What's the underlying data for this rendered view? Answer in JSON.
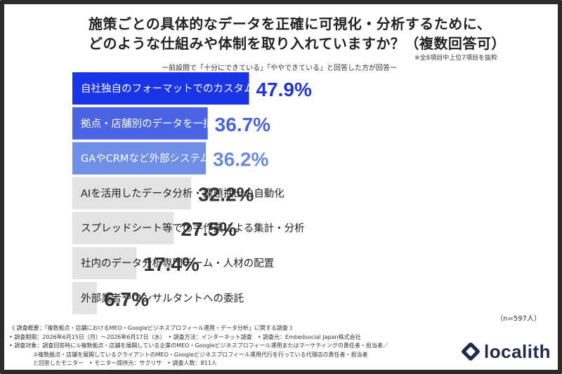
{
  "title": {
    "line1": "施策ごとの具体的なデータを正確に可視化・分析するために、",
    "line2": "どのような仕組みや体制を取り入れていますか？（複数回答可）"
  },
  "note": "※全8項目中上位7項目を抜粋",
  "subtitle": "ー前設問で「十分にできている」「ややできている」と回答した方が回答ー",
  "sample_size": "（n=597人）",
  "chart_data": {
    "type": "bar",
    "orientation": "horizontal",
    "categories": [
      "自社独自のフォーマットでのカスタムレポート",
      "拠点・店舗別のデータを一括集計・比較できる専用ツール",
      "GAやCRMなど外部システムとのデータ連携",
      "AIを活用したデータ分析・課題抽出の自動化",
      "スプレッドシート等での手作業による集計・分析",
      "社内のデータ分析専門チーム・人材の配置",
      "外部業者やコンサルタントへの委託"
    ],
    "values": [
      47.9,
      36.7,
      36.2,
      32.2,
      27.5,
      17.4,
      6.7
    ],
    "value_labels": [
      "47.9%",
      "36.7%",
      "36.2%",
      "32.2%",
      "27.5%",
      "17.4%",
      "6.7%"
    ],
    "xlim": [
      0,
      100
    ],
    "grid": false,
    "bar_colors": [
      "#1a35e8",
      "#4b64e3",
      "#6f8fe6",
      "#e3e3e3",
      "#e3e3e3",
      "#e3e3e3",
      "#e3e3e3"
    ],
    "label_text_colors": [
      "#ffffff",
      "#ffffff",
      "#ffffff",
      "#222222",
      "#222222",
      "#222222",
      "#222222"
    ],
    "value_text_colors": [
      "#2233dd",
      "#4a64d8",
      "#6a8ad8",
      "#333333",
      "#333333",
      "#333333",
      "#333333"
    ]
  },
  "footer": {
    "line1": "《 調査概要：「複数拠点・店舗におけるMEO・Googleビジネスプロフィール運用・データ分析」に関する調査 》",
    "line2": "• 調査期間：2026年6月15日（月）〜2026年6月17日（水）　• 調査方法：インターネット調査　• 調査元：Embedsocial Japan株式会社",
    "line3": "• 調査対象：調査回答時に①複数拠点・店舗を展開している企業のMEO・Googleビジネスプロフィール運用またはマーケティングの責任者・担当者／",
    "line4": "②複数拠点・店舗を展開しているクライアントのMEO・Googleビジネスプロフィール運用代行を行っている代理店の責任者・担当者",
    "line5": "と回答したモニター　• モニター提供元：サクリサ　• 調査人数：811人"
  },
  "logo": {
    "text": "localith",
    "icon": "localith-logo-icon"
  }
}
